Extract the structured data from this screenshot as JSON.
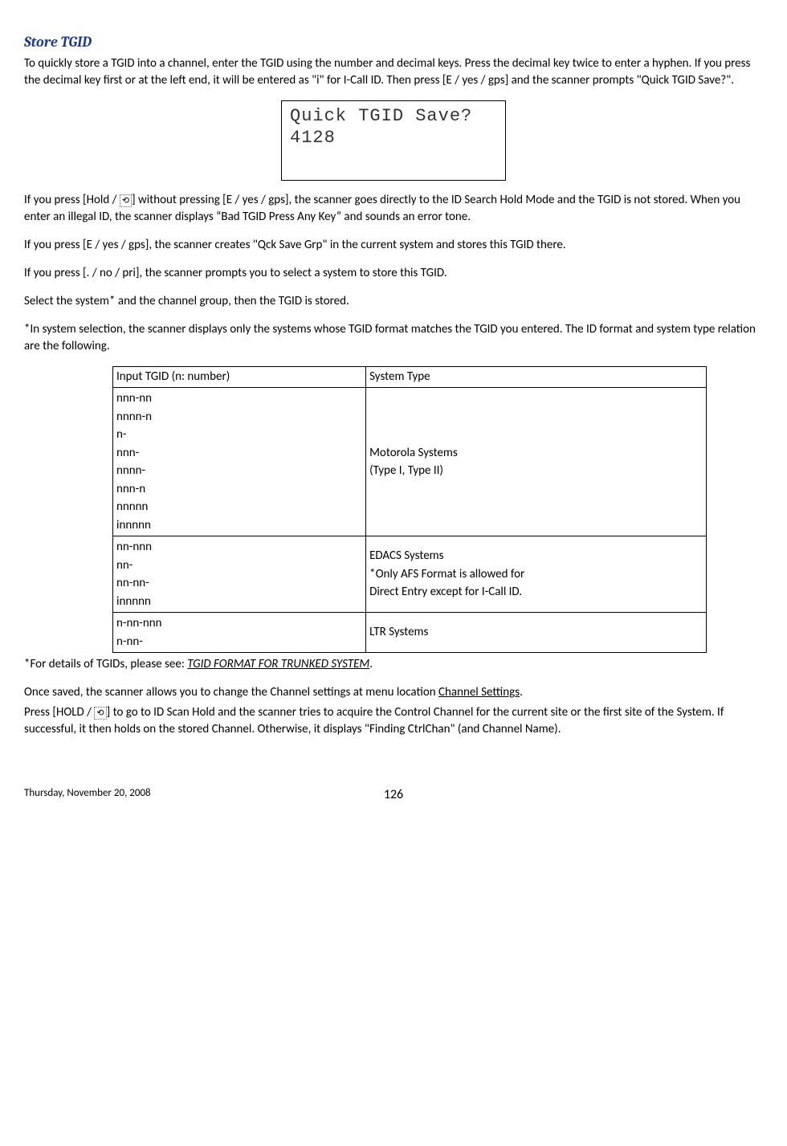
{
  "title": "Store TGID",
  "p1": "To quickly store a TGID into a channel, enter  the TGID using the number and decimal keys. Press the decimal key twice to enter a hyphen. If you press the decimal key first or at the left end, it will be entered as \"i\" for I-Call ID. Then press [E / yes / gps] and the scanner prompts \"Quick TGID Save?\".",
  "lcd_line1": "Quick TGID Save?",
  "lcd_line2": "4128",
  "p2a": "If you press [Hold / ",
  "p2b": "] without pressing [E / yes / gps], the scanner goes directly to the ID Search Hold Mode and the TGID is not stored. When you enter an illegal ID, the scanner displays “Bad TGID Press Any Key” and sounds an error tone.",
  "p3": "If you press [E / yes / gps], the scanner creates \"Qck Save Grp\" in the current system and stores this TGID there.",
  "p4": "If you press [. / no / pri], the scanner prompts you to select a system to store this TGID.",
  "p5": "Select the system* and the channel group, then the TGID is stored.",
  "p6": "*In system selection, the scanner displays only the systems whose TGID format matches the TGID you entered. The ID format and system type relation are the following.",
  "table": {
    "header": [
      "Input TGID (n: number)",
      "System Type"
    ],
    "rows": [
      {
        "col1": [
          "nnn-nn",
          "nnnn-n",
          "n-",
          "nnn-",
          "nnnn-",
          "nnn-n",
          "nnnnn",
          "innnnn"
        ],
        "col2": [
          "Motorola Systems",
          "(Type I, Type II)"
        ]
      },
      {
        "col1": [
          "nn-nnn",
          "nn-",
          "nn-nn-",
          "innnnn"
        ],
        "col2": [
          "EDACS Systems",
          "*Only AFS Format is allowed for",
          "Direct Entry except for I-Call ID."
        ]
      },
      {
        "col1": [
          "n-nn-nnn",
          "n-nn-"
        ],
        "col2": [
          "LTR Systems"
        ]
      }
    ]
  },
  "p7a": "*For details of TGIDs, please see: ",
  "p7link": "TGID FORMAT FOR TRUNKED SYSTEM",
  "p7b": ".",
  "p8a": "Once saved, the scanner allows you to change the Channel settings at menu location ",
  "p8link": "Channel Settings",
  "p8b": ".",
  "p9a": "Press [HOLD / ",
  "p9b": "] to go to ID Scan Hold and the scanner tries to acquire the Control Channel for the current site or the first site of the System. If successful, it then holds on the stored Channel. Otherwise, it displays \"Finding CtrlChan\" (and Channel Name).",
  "footer_date": "Thursday, November 20, 2008",
  "footer_page": "126"
}
